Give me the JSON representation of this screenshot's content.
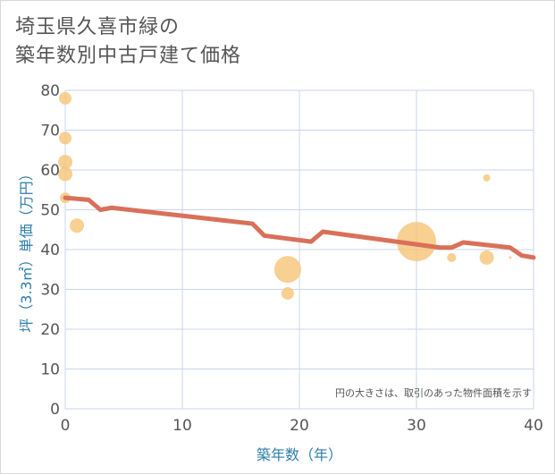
{
  "title": {
    "line1": "埼玉県久喜市緑の",
    "line2": "築年数別中古戸建て価格"
  },
  "colors": {
    "trend": "#d9705a",
    "bubble": "#f5c67a",
    "grid": "#c8d6e8",
    "axis_label": "#2e7da8"
  },
  "chart_data": {
    "type": "scatter",
    "title": "埼玉県久喜市緑の築年数別中古戸建て価格",
    "xlabel": "築年数（年）",
    "ylabel": "坪（3.3㎡）単価（万円）",
    "xlim": [
      0,
      40
    ],
    "ylim": [
      0,
      80
    ],
    "xticks": [
      0,
      10,
      20,
      30,
      40
    ],
    "yticks": [
      0,
      10,
      20,
      30,
      40,
      50,
      60,
      70,
      80
    ],
    "grid": true,
    "note": "円の大きさは、取引のあった物件面積を示す",
    "series": [
      {
        "type": "scatter",
        "points": [
          {
            "x": 0,
            "y": 78,
            "size": 7
          },
          {
            "x": 0,
            "y": 68,
            "size": 7
          },
          {
            "x": 0,
            "y": 62,
            "size": 8
          },
          {
            "x": 0,
            "y": 59,
            "size": 8
          },
          {
            "x": 0,
            "y": 53,
            "size": 6
          },
          {
            "x": 1,
            "y": 46,
            "size": 8
          },
          {
            "x": 19,
            "y": 35,
            "size": 15
          },
          {
            "x": 19,
            "y": 29,
            "size": 7
          },
          {
            "x": 30,
            "y": 42,
            "size": 22
          },
          {
            "x": 33,
            "y": 38,
            "size": 5
          },
          {
            "x": 36,
            "y": 58,
            "size": 4
          },
          {
            "x": 36,
            "y": 38,
            "size": 8
          },
          {
            "x": 38,
            "y": 38,
            "size": 1.5
          }
        ]
      },
      {
        "type": "line",
        "x": [
          0,
          2,
          3,
          4,
          16,
          17,
          21,
          22,
          32,
          33,
          34,
          38,
          39,
          40
        ],
        "y": [
          53,
          52.5,
          50,
          50.5,
          46.5,
          43.5,
          42,
          44.5,
          40.5,
          40.5,
          41.8,
          40.5,
          38.5,
          38
        ]
      }
    ]
  }
}
